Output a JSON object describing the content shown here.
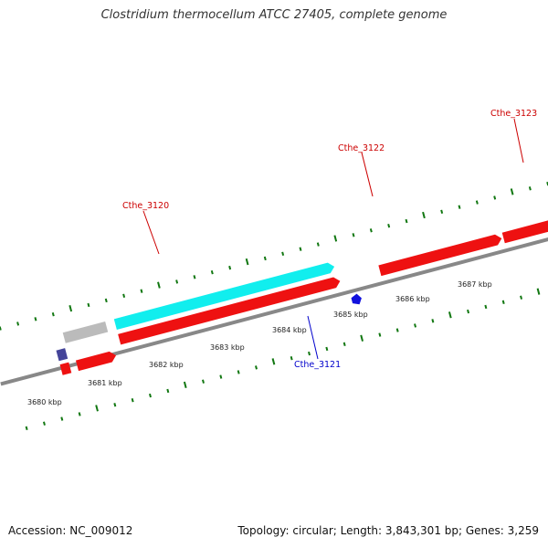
{
  "title": "Clostridium thermocellum ATCC 27405, complete genome",
  "footer": {
    "accession": "Accession: NC_009012",
    "topology": "Topology: circular; Length: 3,843,301 bp; Genes: 3,259"
  },
  "scale_labels": [
    "3680 kbp",
    "3681 kbp",
    "3682 kbp",
    "3683 kbp",
    "3684 kbp",
    "3685 kbp",
    "3686 kbp",
    "3687 kbp"
  ],
  "gene_labels": [
    {
      "text": "Cthe_3120",
      "color": "#cc0000"
    },
    {
      "text": "Cthe_3122",
      "color": "#cc0000"
    },
    {
      "text": "Cthe_3123",
      "color": "#cc0000"
    },
    {
      "text": "Cthe_3121",
      "color": "#0000cc"
    }
  ],
  "colors": {
    "cds": "#ee1111",
    "rna": "#11eeee",
    "pseudo": "#bbbbbb",
    "other": "#444499",
    "small_feature": "#1111dd",
    "ticks": "#117711",
    "backbone": "#888888"
  }
}
